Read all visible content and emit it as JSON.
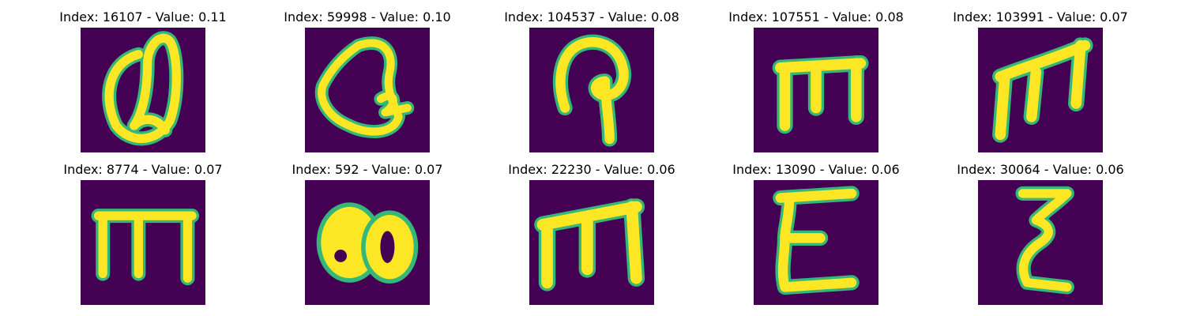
{
  "colors": {
    "background": "#440154",
    "stroke": "#fde725",
    "edge": "#35b779"
  },
  "panels": [
    {
      "index": "16107",
      "value": "0.11",
      "glyph": "script-Q"
    },
    {
      "index": "59998",
      "value": "0.10",
      "glyph": "script-Q-open"
    },
    {
      "index": "104537",
      "value": "0.08",
      "glyph": "hook-P"
    },
    {
      "index": "107551",
      "value": "0.08",
      "glyph": "m-flat"
    },
    {
      "index": "103991",
      "value": "0.07",
      "glyph": "m-slanted"
    },
    {
      "index": "8774",
      "value": "0.07",
      "glyph": "m-square"
    },
    {
      "index": "592",
      "value": "0.07",
      "glyph": "blob-80"
    },
    {
      "index": "22230",
      "value": "0.06",
      "glyph": "m-tilted"
    },
    {
      "index": "13090",
      "value": "0.06",
      "glyph": "sigma"
    },
    {
      "index": "30064",
      "value": "0.06",
      "glyph": "zeta"
    }
  ]
}
